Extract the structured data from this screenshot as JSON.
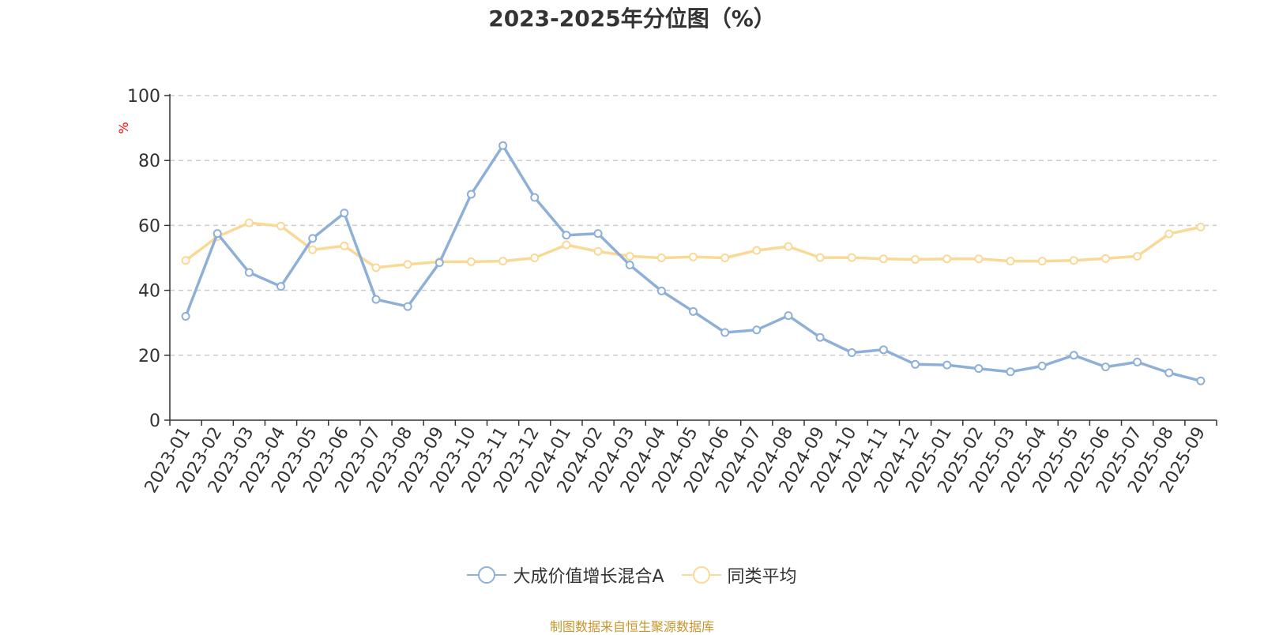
{
  "chart_data": {
    "type": "line",
    "title": "2023-2025年分位图（%）",
    "ylabel": "%",
    "xlabel": "",
    "ylim": [
      0,
      100
    ],
    "yticks": [
      0,
      20,
      40,
      60,
      80,
      100
    ],
    "grid": true,
    "legend_position": "bottom",
    "categories": [
      "2023-01",
      "2023-02",
      "2023-03",
      "2023-04",
      "2023-05",
      "2023-06",
      "2023-07",
      "2023-08",
      "2023-09",
      "2023-10",
      "2023-11",
      "2023-12",
      "2024-01",
      "2024-02",
      "2024-03",
      "2024-04",
      "2024-05",
      "2024-06",
      "2024-07",
      "2024-08",
      "2024-09",
      "2024-10",
      "2024-11",
      "2024-12",
      "2025-01",
      "2025-02",
      "2025-03",
      "2025-04",
      "2025-05",
      "2025-06",
      "2025-07",
      "2025-08",
      "2025-09"
    ],
    "series": [
      {
        "name": "大成价值增长混合A",
        "color": "#8eb0d8",
        "values": [
          32.0,
          57.5,
          45.5,
          41.2,
          56.0,
          63.8,
          37.2,
          35.0,
          48.5,
          69.6,
          84.6,
          68.6,
          57.0,
          57.5,
          47.8,
          39.8,
          33.5,
          27.0,
          27.8,
          32.2,
          25.5,
          20.8,
          21.7,
          17.2,
          17.0,
          15.9,
          14.9,
          16.7,
          20.0,
          16.4,
          17.9,
          14.6,
          12.1
        ]
      },
      {
        "name": "同类平均",
        "color": "#fad896",
        "values": [
          49.2,
          56.5,
          60.8,
          59.8,
          52.5,
          53.7,
          47.0,
          48.0,
          48.8,
          48.8,
          49.0,
          50.0,
          54.0,
          52.0,
          50.5,
          50.0,
          50.3,
          50.0,
          52.3,
          53.5,
          50.1,
          50.1,
          49.7,
          49.5,
          49.7,
          49.7,
          49.0,
          49.0,
          49.2,
          49.8,
          50.5,
          57.4,
          59.5
        ]
      }
    ]
  },
  "source": {
    "text": "制图数据来自恒生聚源数据库",
    "color": "#c8962c"
  },
  "ylabel_color": "#ff0000"
}
